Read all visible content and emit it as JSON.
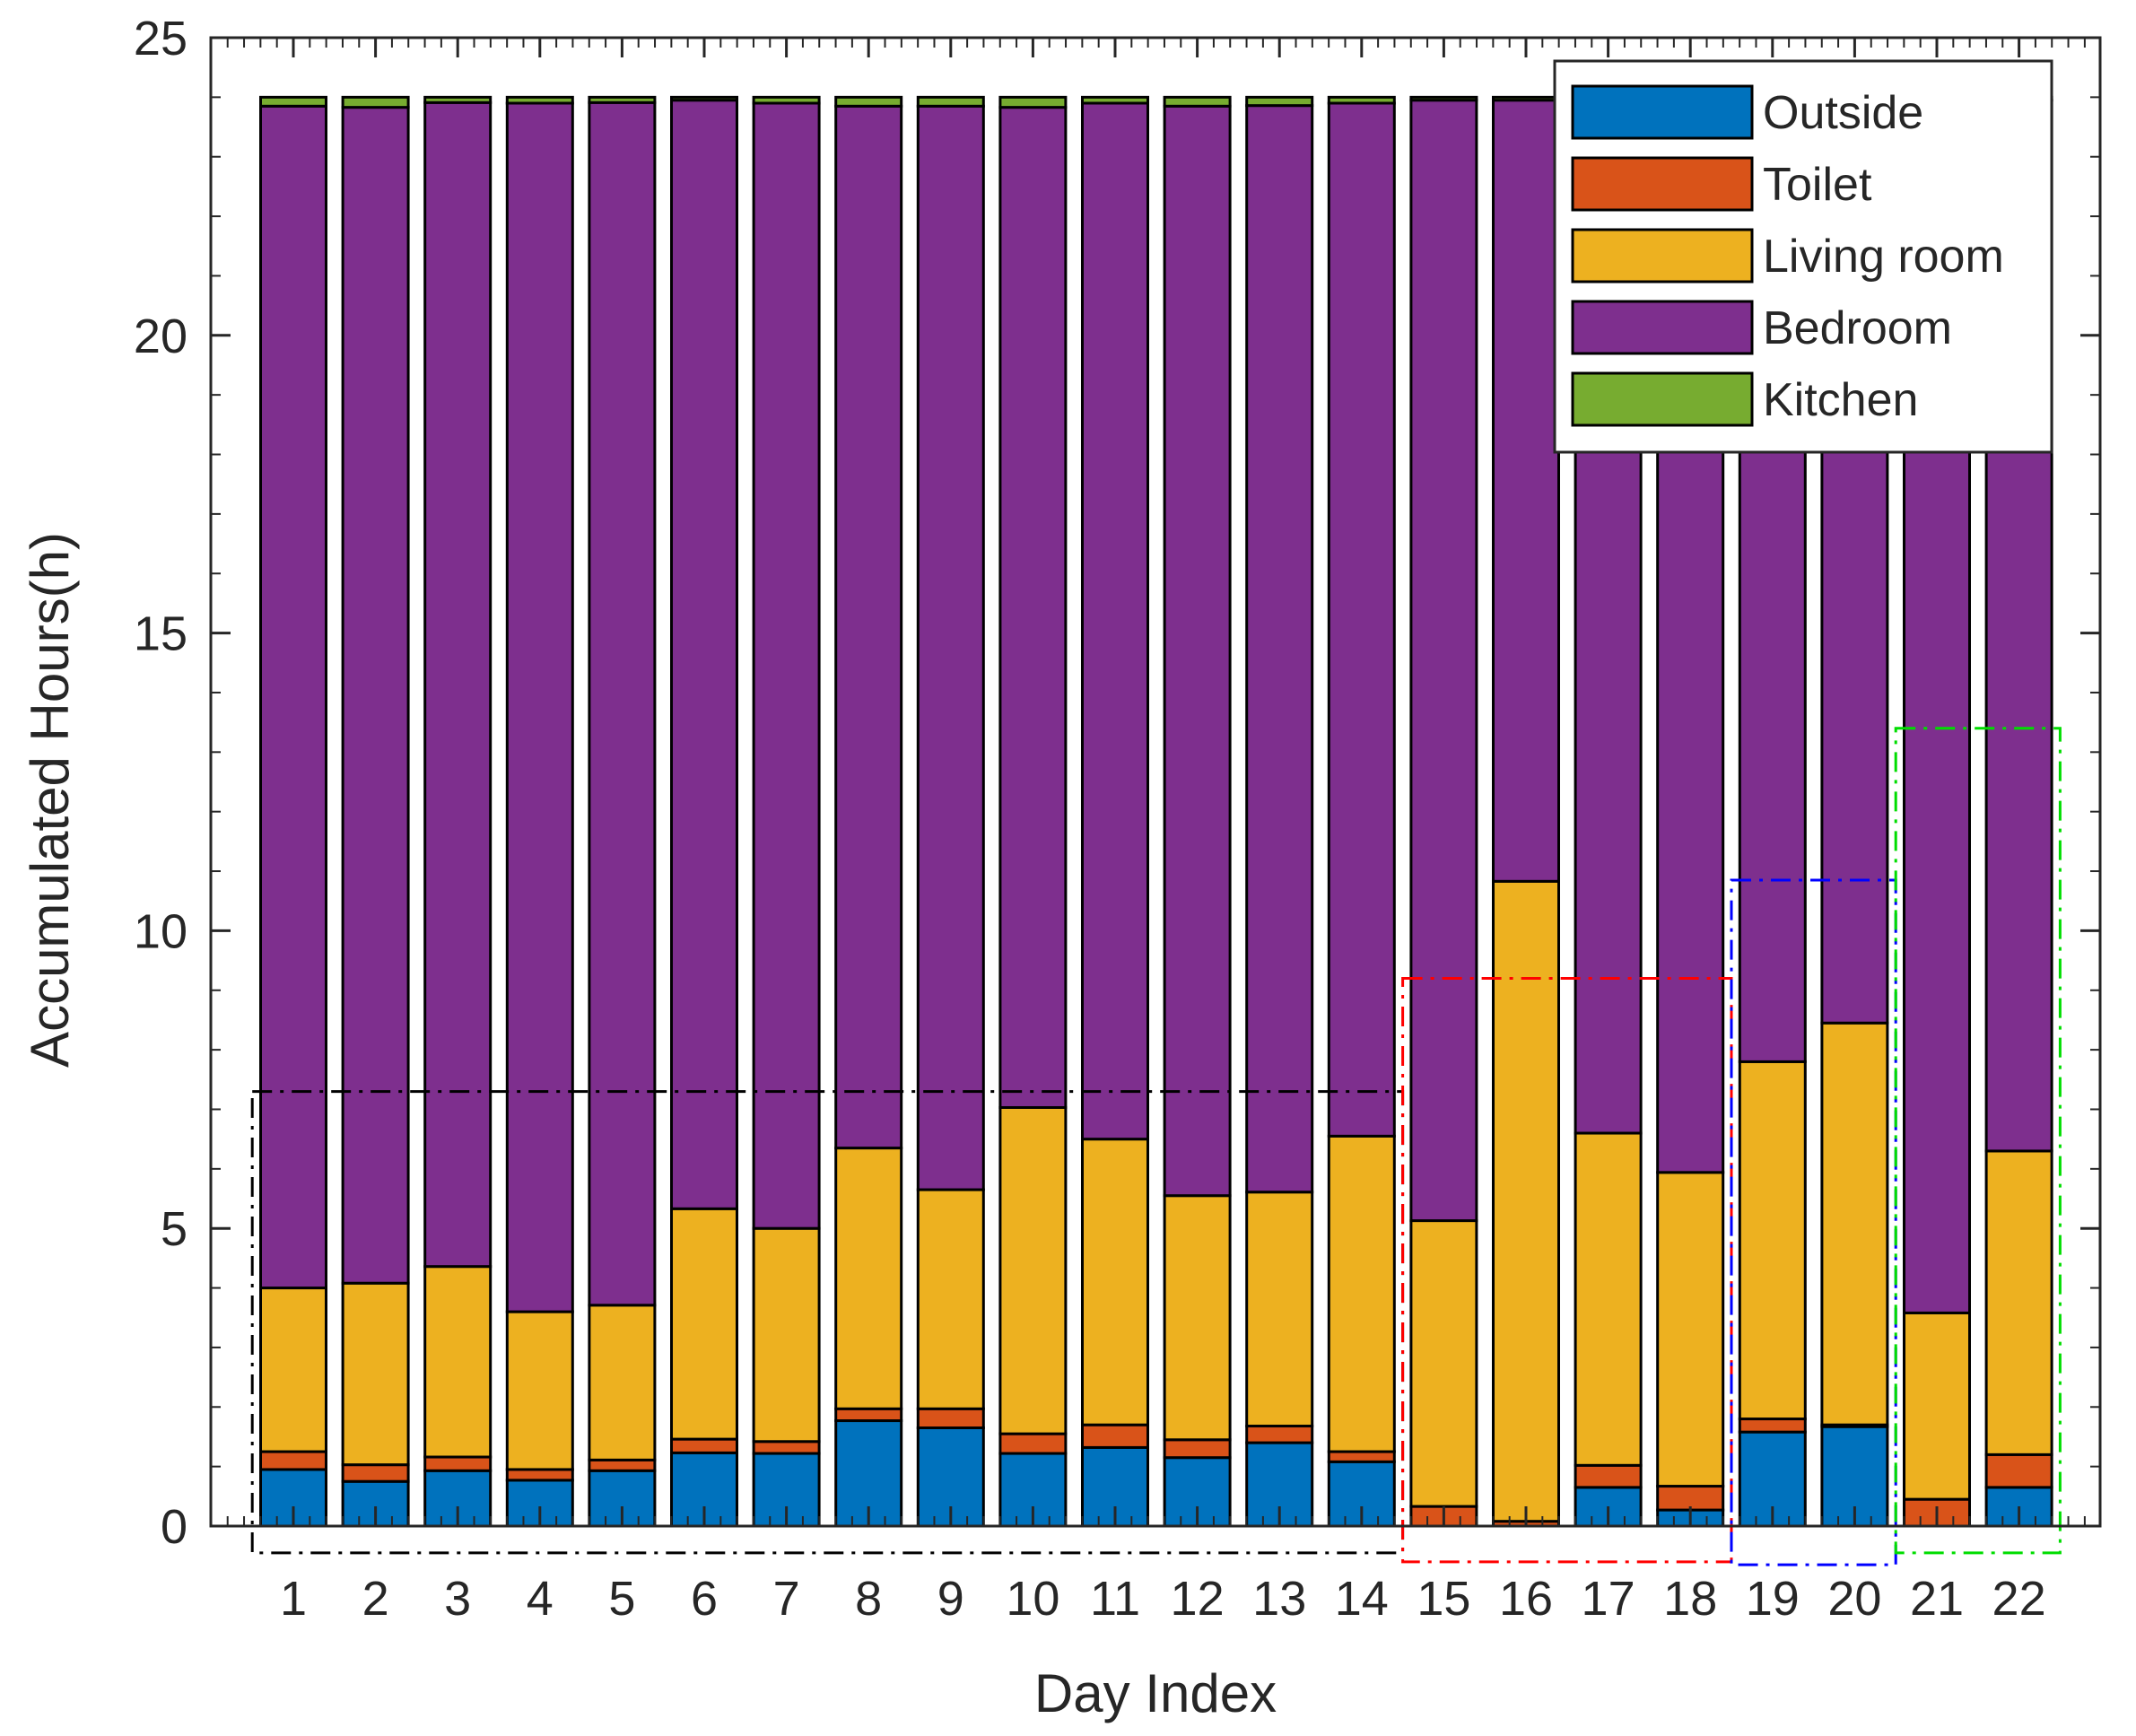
{
  "chart_data": {
    "type": "bar",
    "stacked": true,
    "title": "",
    "xlabel": "Day Index",
    "ylabel": "Accumulated Hours(h)",
    "ylim": [
      0,
      25
    ],
    "yticks": [
      0,
      5,
      10,
      15,
      20,
      25
    ],
    "grid": false,
    "legend_position": "top-right",
    "categories": [
      "1",
      "2",
      "3",
      "4",
      "5",
      "6",
      "7",
      "8",
      "9",
      "10",
      "11",
      "12",
      "13",
      "14",
      "15",
      "16",
      "17",
      "18",
      "19",
      "20",
      "21",
      "22"
    ],
    "series": [
      {
        "name": "Outside",
        "color": "#0072BD",
        "values": [
          0.95,
          0.75,
          0.93,
          0.77,
          0.93,
          1.23,
          1.22,
          1.77,
          1.65,
          1.22,
          1.32,
          1.15,
          1.4,
          1.08,
          0.0,
          0.0,
          0.65,
          0.27,
          1.58,
          1.67,
          0.0,
          0.65
        ]
      },
      {
        "name": "Toilet",
        "color": "#D95319",
        "values": [
          0.3,
          0.28,
          0.23,
          0.18,
          0.18,
          0.23,
          0.2,
          0.2,
          0.32,
          0.33,
          0.38,
          0.3,
          0.28,
          0.17,
          0.33,
          0.08,
          0.37,
          0.4,
          0.22,
          0.03,
          0.45,
          0.55
        ]
      },
      {
        "name": "Living room",
        "color": "#EDB120",
        "values": [
          2.75,
          3.05,
          3.2,
          2.65,
          2.6,
          3.87,
          3.58,
          4.38,
          3.68,
          5.48,
          4.8,
          4.1,
          3.93,
          5.3,
          4.8,
          10.75,
          5.58,
          5.27,
          6.0,
          6.75,
          3.13,
          5.1
        ]
      },
      {
        "name": "Bedroom",
        "color": "#7E2F8E",
        "values": [
          19.85,
          19.75,
          19.55,
          20.3,
          20.2,
          18.62,
          18.9,
          17.5,
          18.2,
          16.8,
          17.4,
          18.3,
          18.25,
          17.35,
          18.82,
          13.12,
          17.35,
          18.01,
          16.15,
          15.5,
          20.37,
          17.65
        ]
      },
      {
        "name": "Kitchen",
        "color": "#77AC30",
        "values": [
          0.15,
          0.17,
          0.09,
          0.1,
          0.09,
          0.05,
          0.1,
          0.15,
          0.15,
          0.17,
          0.1,
          0.15,
          0.14,
          0.1,
          0.05,
          0.05,
          0.05,
          0.05,
          0.05,
          0.05,
          0.05,
          0.05
        ]
      }
    ],
    "annotations": [
      {
        "name": "group-black-box",
        "color": "#000000",
        "days": [
          1,
          14
        ],
        "ymin": -0.45,
        "ymax": 7.3
      },
      {
        "name": "group-red-box",
        "color": "#FF0000",
        "days": [
          15,
          18
        ],
        "ymin": -0.6,
        "ymax": 9.2
      },
      {
        "name": "group-blue-box",
        "color": "#0000FF",
        "days": [
          19,
          20
        ],
        "ymin": -0.65,
        "ymax": 10.85
      },
      {
        "name": "group-green-box",
        "color": "#00DD00",
        "days": [
          21,
          22
        ],
        "ymin": -0.45,
        "ymax": 13.4
      }
    ]
  }
}
